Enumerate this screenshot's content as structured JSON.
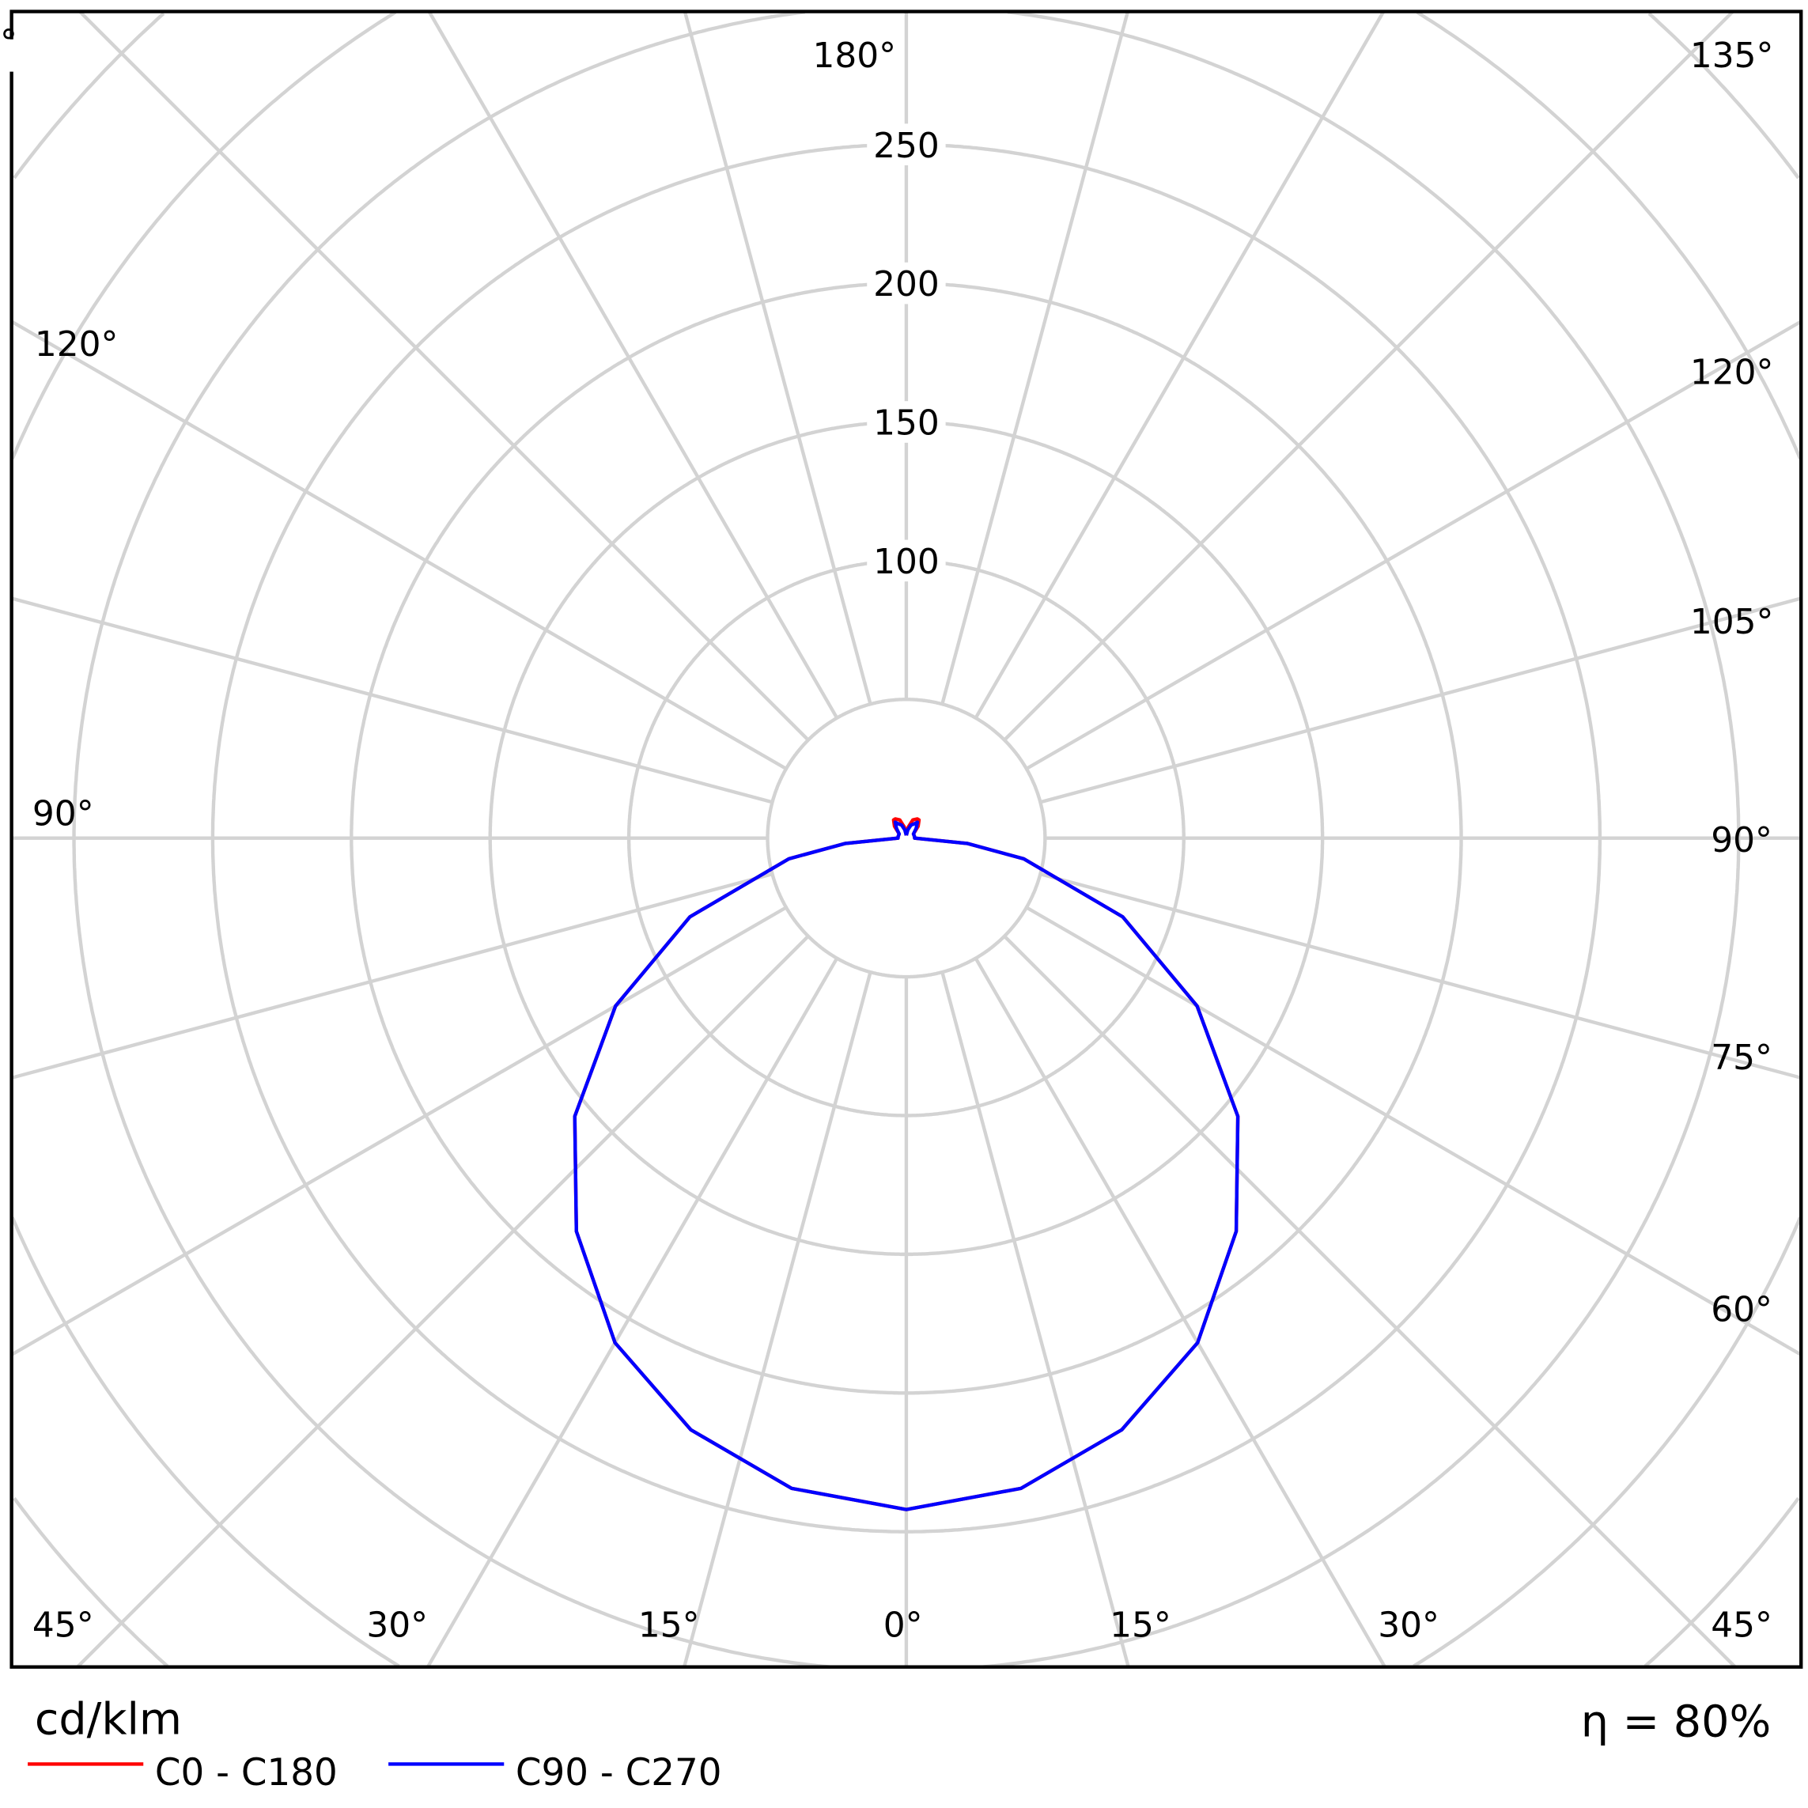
{
  "chart_data": {
    "type": "polar",
    "unit_label": "cd/klm",
    "efficiency_label": "η = 80%",
    "radial_ticks": [
      "100",
      "150",
      "200",
      "250"
    ],
    "radial_tick_values": [
      100,
      150,
      200,
      250
    ],
    "ring_step": 50,
    "angle_labels": {
      "bottom": [
        "45°",
        "30°",
        "15°",
        "0°",
        "15°",
        "30°",
        "45°"
      ],
      "right": [
        "60°",
        "75°",
        "90°",
        "105°",
        "120°",
        "135°"
      ],
      "left": [
        "90°",
        "120°"
      ],
      "top": [
        "180°",
        "135°"
      ],
      "top_left_cut": "°"
    },
    "gamma_deg": [
      0,
      10,
      20,
      30,
      40,
      50,
      60,
      70,
      80,
      85,
      90,
      100,
      120,
      135,
      145,
      150,
      160,
      170,
      180
    ],
    "series": [
      {
        "name": "C0 - C180",
        "color": "#ff0000",
        "values": [
          242,
          238,
          227,
          210,
          185,
          156,
          121,
          83,
          43,
          22,
          3,
          3,
          3,
          6,
          8,
          8,
          7,
          4,
          1
        ]
      },
      {
        "name": "C90 - C270",
        "color": "#0000ff",
        "values": [
          242,
          238,
          227,
          210,
          185,
          156,
          121,
          83,
          43,
          22,
          3,
          3,
          3,
          5,
          7,
          6,
          5,
          3,
          1
        ]
      }
    ],
    "grid": true,
    "legend_position": "bottom-left"
  }
}
